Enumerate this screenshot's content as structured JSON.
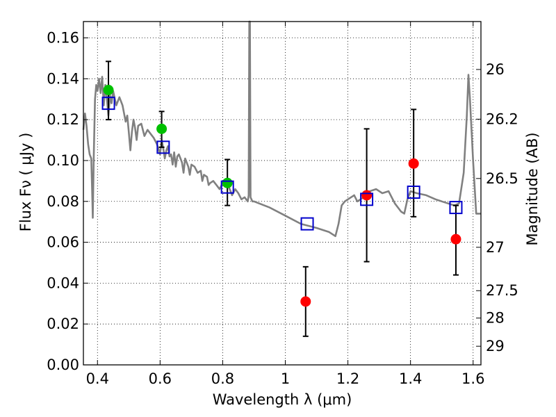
{
  "chart_data": {
    "type": "scatter",
    "xlabel": "Wavelength  λ (μm)",
    "ylabel": "Flux  Fν  ( μJy )",
    "y2label": "Magnitude (AB)",
    "xlim": [
      0.355,
      1.625
    ],
    "ylim": [
      0.0,
      0.168
    ],
    "xticks": [
      0.4,
      0.6,
      0.8,
      1.0,
      1.2,
      1.4,
      1.6
    ],
    "xtick_labels": [
      "0.4",
      "0.6",
      "0.8",
      "1",
      "1.2",
      "1.4",
      "1.6"
    ],
    "yticks": [
      0.0,
      0.02,
      0.04,
      0.06,
      0.08,
      0.1,
      0.12,
      0.14,
      0.16
    ],
    "ytick_labels": [
      "0.00",
      "0.02",
      "0.04",
      "0.06",
      "0.08",
      "0.10",
      "0.12",
      "0.14",
      "0.16"
    ],
    "y2ticks": [
      {
        "mag": 26,
        "label": "26"
      },
      {
        "mag": 26.2,
        "label": "26.2"
      },
      {
        "mag": 26.5,
        "label": "26.5"
      },
      {
        "mag": 27,
        "label": "27"
      },
      {
        "mag": 27.5,
        "label": "27.5"
      },
      {
        "mag": 28,
        "label": "28"
      },
      {
        "mag": 29,
        "label": "29"
      }
    ],
    "grid": true,
    "colors": {
      "model": "#808080",
      "green": "#00c000",
      "red": "#ff0000",
      "box": "#0000cc",
      "err": "#000000"
    },
    "model_curve": [
      [
        0.355,
        0.115
      ],
      [
        0.36,
        0.123
      ],
      [
        0.365,
        0.117
      ],
      [
        0.37,
        0.108
      ],
      [
        0.375,
        0.103
      ],
      [
        0.38,
        0.101
      ],
      [
        0.383,
        0.085
      ],
      [
        0.385,
        0.072
      ],
      [
        0.388,
        0.102
      ],
      [
        0.392,
        0.13
      ],
      [
        0.396,
        0.137
      ],
      [
        0.4,
        0.134
      ],
      [
        0.405,
        0.14
      ],
      [
        0.41,
        0.133
      ],
      [
        0.415,
        0.141
      ],
      [
        0.42,
        0.127
      ],
      [
        0.425,
        0.137
      ],
      [
        0.43,
        0.13
      ],
      [
        0.435,
        0.122
      ],
      [
        0.44,
        0.132
      ],
      [
        0.445,
        0.128
      ],
      [
        0.45,
        0.134
      ],
      [
        0.46,
        0.127
      ],
      [
        0.47,
        0.131
      ],
      [
        0.48,
        0.127
      ],
      [
        0.49,
        0.119
      ],
      [
        0.495,
        0.122
      ],
      [
        0.5,
        0.114
      ],
      [
        0.505,
        0.105
      ],
      [
        0.51,
        0.114
      ],
      [
        0.515,
        0.12
      ],
      [
        0.52,
        0.116
      ],
      [
        0.525,
        0.11
      ],
      [
        0.53,
        0.117
      ],
      [
        0.54,
        0.118
      ],
      [
        0.55,
        0.112
      ],
      [
        0.56,
        0.115
      ],
      [
        0.57,
        0.113
      ],
      [
        0.58,
        0.111
      ],
      [
        0.59,
        0.108
      ],
      [
        0.6,
        0.103
      ],
      [
        0.605,
        0.11
      ],
      [
        0.61,
        0.106
      ],
      [
        0.615,
        0.101
      ],
      [
        0.62,
        0.105
      ],
      [
        0.625,
        0.107
      ],
      [
        0.63,
        0.102
      ],
      [
        0.635,
        0.103
      ],
      [
        0.64,
        0.098
      ],
      [
        0.645,
        0.104
      ],
      [
        0.65,
        0.097
      ],
      [
        0.655,
        0.102
      ],
      [
        0.66,
        0.103
      ],
      [
        0.67,
        0.099
      ],
      [
        0.675,
        0.094
      ],
      [
        0.68,
        0.101
      ],
      [
        0.69,
        0.097
      ],
      [
        0.695,
        0.093
      ],
      [
        0.7,
        0.098
      ],
      [
        0.71,
        0.097
      ],
      [
        0.72,
        0.094
      ],
      [
        0.73,
        0.095
      ],
      [
        0.735,
        0.09
      ],
      [
        0.74,
        0.093
      ],
      [
        0.75,
        0.092
      ],
      [
        0.755,
        0.088
      ],
      [
        0.76,
        0.089
      ],
      [
        0.77,
        0.09
      ],
      [
        0.78,
        0.088
      ],
      [
        0.79,
        0.086
      ],
      [
        0.8,
        0.089
      ],
      [
        0.81,
        0.088
      ],
      [
        0.82,
        0.087
      ],
      [
        0.83,
        0.083
      ],
      [
        0.84,
        0.086
      ],
      [
        0.85,
        0.084
      ],
      [
        0.86,
        0.081
      ],
      [
        0.87,
        0.082
      ],
      [
        0.88,
        0.08
      ],
      [
        0.883,
        0.083
      ],
      [
        0.885,
        0.168
      ],
      [
        0.887,
        0.168
      ],
      [
        0.889,
        0.082
      ],
      [
        0.895,
        0.08
      ],
      [
        0.9,
        0.08
      ],
      [
        0.95,
        0.077
      ],
      [
        1.0,
        0.073
      ],
      [
        1.05,
        0.069
      ],
      [
        1.1,
        0.067
      ],
      [
        1.14,
        0.065
      ],
      [
        1.16,
        0.063
      ],
      [
        1.17,
        0.069
      ],
      [
        1.18,
        0.078
      ],
      [
        1.19,
        0.08
      ],
      [
        1.2,
        0.081
      ],
      [
        1.22,
        0.083
      ],
      [
        1.23,
        0.08
      ],
      [
        1.25,
        0.082
      ],
      [
        1.27,
        0.085
      ],
      [
        1.29,
        0.086
      ],
      [
        1.31,
        0.084
      ],
      [
        1.33,
        0.085
      ],
      [
        1.35,
        0.079
      ],
      [
        1.37,
        0.075
      ],
      [
        1.38,
        0.074
      ],
      [
        1.39,
        0.081
      ],
      [
        1.4,
        0.085
      ],
      [
        1.42,
        0.084
      ],
      [
        1.45,
        0.083
      ],
      [
        1.48,
        0.081
      ],
      [
        1.5,
        0.08
      ],
      [
        1.52,
        0.079
      ],
      [
        1.54,
        0.078
      ],
      [
        1.555,
        0.079
      ],
      [
        1.57,
        0.094
      ],
      [
        1.58,
        0.122
      ],
      [
        1.585,
        0.142
      ],
      [
        1.59,
        0.13
      ],
      [
        1.6,
        0.1
      ],
      [
        1.61,
        0.074
      ],
      [
        1.625,
        0.074
      ]
    ],
    "green_points": [
      {
        "x": 0.435,
        "y": 0.1345
      },
      {
        "x": 0.605,
        "y": 0.1155
      },
      {
        "x": 0.815,
        "y": 0.089
      }
    ],
    "red_points": [
      {
        "x": 1.065,
        "y": 0.031
      },
      {
        "x": 1.26,
        "y": 0.083
      },
      {
        "x": 1.41,
        "y": 0.0985
      },
      {
        "x": 1.545,
        "y": 0.0615
      }
    ],
    "errorbars": [
      {
        "x": 0.435,
        "lo": 0.12,
        "hi": 0.1485
      },
      {
        "x": 0.605,
        "lo": 0.1065,
        "hi": 0.124
      },
      {
        "x": 0.815,
        "lo": 0.078,
        "hi": 0.1005
      },
      {
        "x": 1.065,
        "lo": 0.014,
        "hi": 0.048
      },
      {
        "x": 1.26,
        "lo": 0.0505,
        "hi": 0.1155
      },
      {
        "x": 1.41,
        "lo": 0.0725,
        "hi": 0.125
      },
      {
        "x": 1.545,
        "lo": 0.044,
        "hi": 0.078
      }
    ],
    "model_boxes": [
      {
        "x": 0.435,
        "y": 0.128
      },
      {
        "x": 0.61,
        "y": 0.1065
      },
      {
        "x": 0.815,
        "y": 0.087
      },
      {
        "x": 1.07,
        "y": 0.069
      },
      {
        "x": 1.26,
        "y": 0.081
      },
      {
        "x": 1.41,
        "y": 0.0845
      },
      {
        "x": 1.545,
        "y": 0.077
      }
    ]
  }
}
